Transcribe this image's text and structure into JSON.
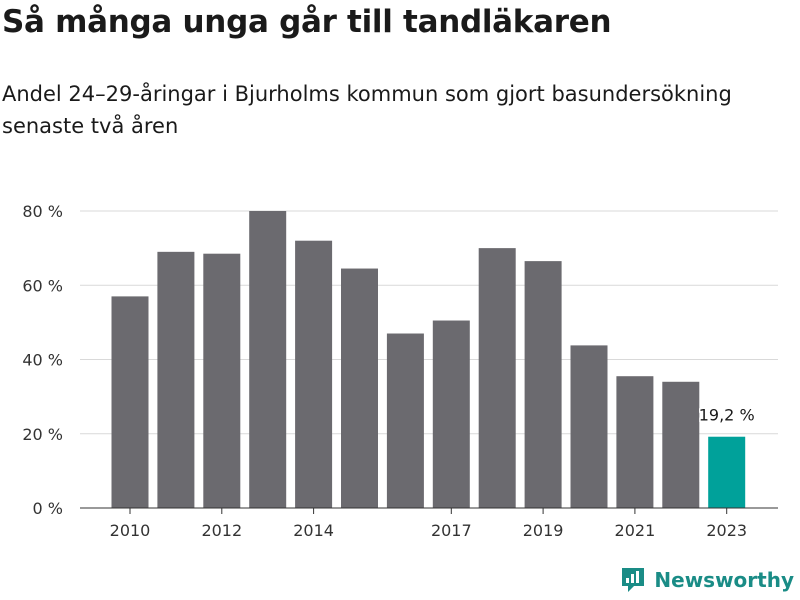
{
  "title": "Så många unga går till tandläkaren",
  "subtitle": "Andel 24–29-åringar i Bjurholms kommun som gjort basundersökning senaste två åren",
  "brand": "Newsworthy",
  "colors": {
    "bar": "#6b6a6f",
    "highlight": "#00a19a",
    "grid": "#d9d9d9",
    "brand": "#1a8c86"
  },
  "chart_data": {
    "type": "bar",
    "categories": [
      "2010",
      "2011",
      "2012",
      "2013",
      "2014",
      "2015",
      "2016",
      "2017",
      "2018",
      "2019",
      "2020",
      "2021",
      "2022",
      "2023"
    ],
    "values": [
      57,
      69,
      68.5,
      80,
      72,
      64.5,
      47,
      50.5,
      70,
      66.5,
      43.8,
      35.5,
      34,
      19.2
    ],
    "x_tick_labels": [
      "2010",
      "2012",
      "2014",
      "2017",
      "2019",
      "2021",
      "2023"
    ],
    "y_ticks": [
      0,
      20,
      40,
      60,
      80
    ],
    "y_tick_labels": [
      "0 %",
      "20 %",
      "40 %",
      "60 %",
      "80 %"
    ],
    "ylim": [
      0,
      80
    ],
    "highlight_label": "19,2 %",
    "highlight_index": 13,
    "grid": true,
    "xlabel": "",
    "ylabel": ""
  }
}
